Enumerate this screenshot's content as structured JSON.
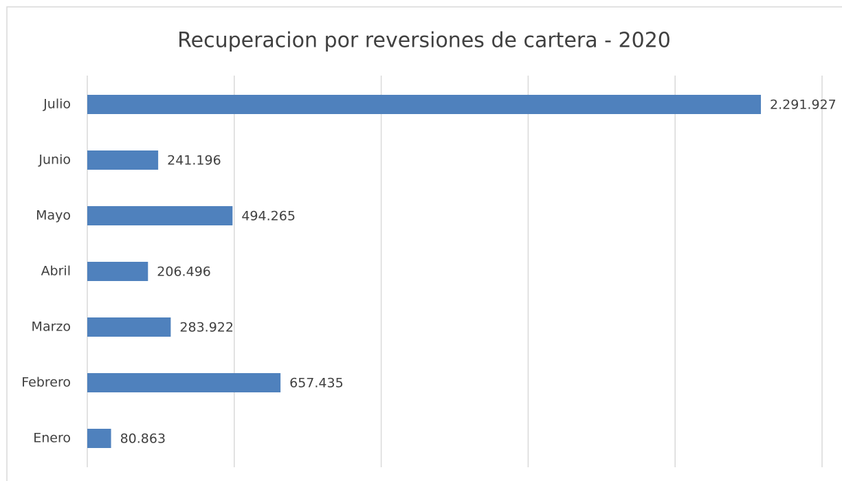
{
  "chart_data": {
    "type": "hbar",
    "title": "Recuperacion por reversiones de cartera - 2020",
    "categories": [
      "Enero",
      "Febrero",
      "Marzo",
      "Abril",
      "Mayo",
      "Junio",
      "Julio"
    ],
    "values": [
      80863,
      657435,
      283922,
      206496,
      494265,
      241196,
      2291927
    ],
    "value_labels": [
      "80.863",
      "657.435",
      "283.922",
      "206.496",
      "494.265",
      "241.196",
      "2.291.927"
    ],
    "color": "#4f81bd",
    "xlim": [
      0,
      2500000
    ],
    "xticks": [
      0,
      500000,
      1000000,
      1500000,
      2000000,
      2500000
    ],
    "grid": true
  }
}
